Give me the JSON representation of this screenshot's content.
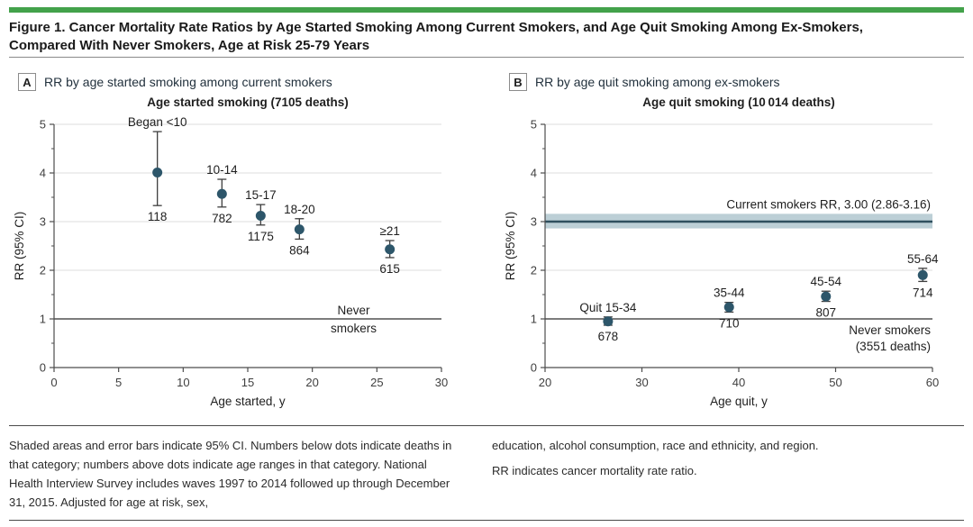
{
  "title": {
    "line1": "Figure 1. Cancer Mortality Rate Ratios by Age Started Smoking Among Current Smokers, and Age Quit Smoking Among Ex-Smokers,",
    "line2": "Compared With Never Smokers, Age at Risk 25-79 Years"
  },
  "colors": {
    "accent_green": "#43A24B",
    "point": "#2D566A",
    "error": "#3E3E3E",
    "band_fill": "#BCCFD6",
    "band_line": "#2F505F",
    "grid": "#DCDCDC",
    "axis": "#4D4D4D",
    "ref_line": "#2E2E2E"
  },
  "chart_data": [
    {
      "type": "scatter",
      "panel_label": "A",
      "panel_title": "RR by age started smoking among current smokers",
      "title": "Age started smoking (7105 deaths)",
      "xlabel": "Age started, y",
      "ylabel": "RR (95% CI)",
      "xlim": [
        0,
        30
      ],
      "ylim": [
        0,
        5
      ],
      "xticks": [
        0,
        5,
        10,
        15,
        20,
        25,
        30
      ],
      "yticks": [
        0,
        1,
        2,
        3,
        4,
        5
      ],
      "y_minor_step": 0.5,
      "grid": "horizontal",
      "reference_line": {
        "y": 1,
        "label_lines": [
          "Never",
          "smokers"
        ],
        "placement": "split-center",
        "label_x": 23.2
      },
      "points": [
        {
          "x": 8,
          "rr": 4.01,
          "ci_low": 3.33,
          "ci_high": 4.85,
          "age_label": "Began <10",
          "deaths": "118"
        },
        {
          "x": 13,
          "rr": 3.57,
          "ci_low": 3.3,
          "ci_high": 3.87,
          "age_label": "10-14",
          "deaths": "782"
        },
        {
          "x": 16,
          "rr": 3.12,
          "ci_low": 2.93,
          "ci_high": 3.35,
          "age_label": "15-17",
          "deaths": "1175"
        },
        {
          "x": 19,
          "rr": 2.84,
          "ci_low": 2.64,
          "ci_high": 3.06,
          "age_label": "18-20",
          "deaths": "864"
        },
        {
          "x": 26,
          "rr": 2.43,
          "ci_low": 2.26,
          "ci_high": 2.61,
          "age_label": "≥21",
          "deaths": "615"
        }
      ]
    },
    {
      "type": "scatter",
      "panel_label": "B",
      "panel_title": "RR by age quit smoking among ex-smokers",
      "title": "Age quit smoking (10 014 deaths)",
      "xlabel": "Age quit, y",
      "ylabel": "RR (95% CI)",
      "xlim": [
        20,
        60
      ],
      "ylim": [
        0,
        5
      ],
      "xticks": [
        20,
        30,
        40,
        50,
        60
      ],
      "yticks": [
        0,
        1,
        2,
        3,
        4,
        5
      ],
      "y_minor_step": 0.5,
      "grid": "horizontal",
      "band": {
        "y": 3.0,
        "low": 2.86,
        "high": 3.16,
        "label": "Current smokers RR, 3.00 (2.86-3.16)"
      },
      "reference_line": {
        "y": 1,
        "label_lines": [
          "Never smokers",
          "(3551 deaths)"
        ],
        "placement": "below-right"
      },
      "points": [
        {
          "x": 26.5,
          "rr": 0.95,
          "ci_low": 0.87,
          "ci_high": 1.04,
          "age_label": "Quit 15-34",
          "deaths": "678"
        },
        {
          "x": 39,
          "rr": 1.24,
          "ci_low": 1.14,
          "ci_high": 1.34,
          "age_label": "35-44",
          "deaths": "710"
        },
        {
          "x": 49,
          "rr": 1.46,
          "ci_low": 1.36,
          "ci_high": 1.57,
          "age_label": "45-54",
          "deaths": "807"
        },
        {
          "x": 59,
          "rr": 1.9,
          "ci_low": 1.77,
          "ci_high": 2.04,
          "age_label": "55-64",
          "deaths": "714"
        }
      ]
    }
  ],
  "footnotes": {
    "left": "Shaded areas and error bars indicate 95% CI. Numbers below dots indicate deaths in that category; numbers above dots indicate age ranges in that category. National Health Interview Survey includes waves 1997 to 2014 followed up through December 31, 2015. Adjusted for age at risk, sex,",
    "right_line1": "education, alcohol consumption, race and ethnicity, and region.",
    "right_line2": "RR indicates cancer mortality rate ratio."
  }
}
